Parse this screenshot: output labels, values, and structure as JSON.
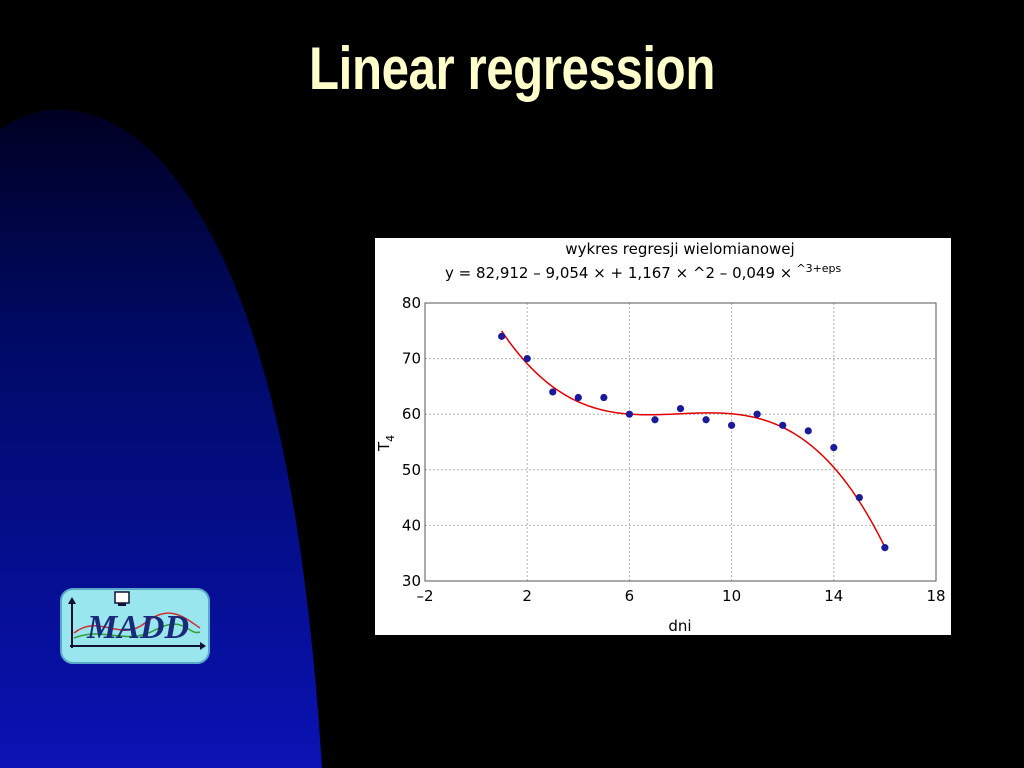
{
  "slide": {
    "title": "Linear regression"
  },
  "logo": {
    "text": "MADD"
  },
  "colors": {
    "title": "#ffffcc",
    "curve": "#e00000",
    "points": "#1a1a9a",
    "panel": "#ffffff"
  },
  "chart_data": {
    "type": "scatter",
    "title": "wykres regresji wielomianowej",
    "subtitle": "y = 82,912 – 9,054 × + 1,167 × ^2 – 0,049 ×",
    "subtitle_sup": "^3+eps",
    "xlabel": "dni",
    "ylabel": "T",
    "ylabel_sub": "4",
    "xlim": [
      -2,
      18
    ],
    "ylim": [
      30,
      80
    ],
    "xticks": [
      -2,
      2,
      6,
      10,
      14,
      18
    ],
    "xtick_labels": [
      "–2",
      "2",
      "6",
      "10",
      "14",
      "18"
    ],
    "yticks": [
      30,
      40,
      50,
      60,
      70,
      80
    ],
    "ytick_labels": [
      "30",
      "40",
      "50",
      "60",
      "70",
      "80"
    ],
    "grid": true,
    "series": [
      {
        "kind": "points",
        "x": [
          1,
          2,
          3,
          4,
          5,
          6,
          7,
          8,
          9,
          10,
          11,
          12,
          13,
          14,
          15,
          16
        ],
        "y": [
          74,
          70,
          64,
          63,
          63,
          60,
          59,
          61,
          59,
          58,
          60,
          58,
          57,
          54,
          45,
          36
        ]
      },
      {
        "kind": "fit",
        "coefficients": [
          82.912,
          -9.054,
          1.167,
          -0.049
        ],
        "x_range": [
          1,
          16
        ]
      }
    ]
  }
}
